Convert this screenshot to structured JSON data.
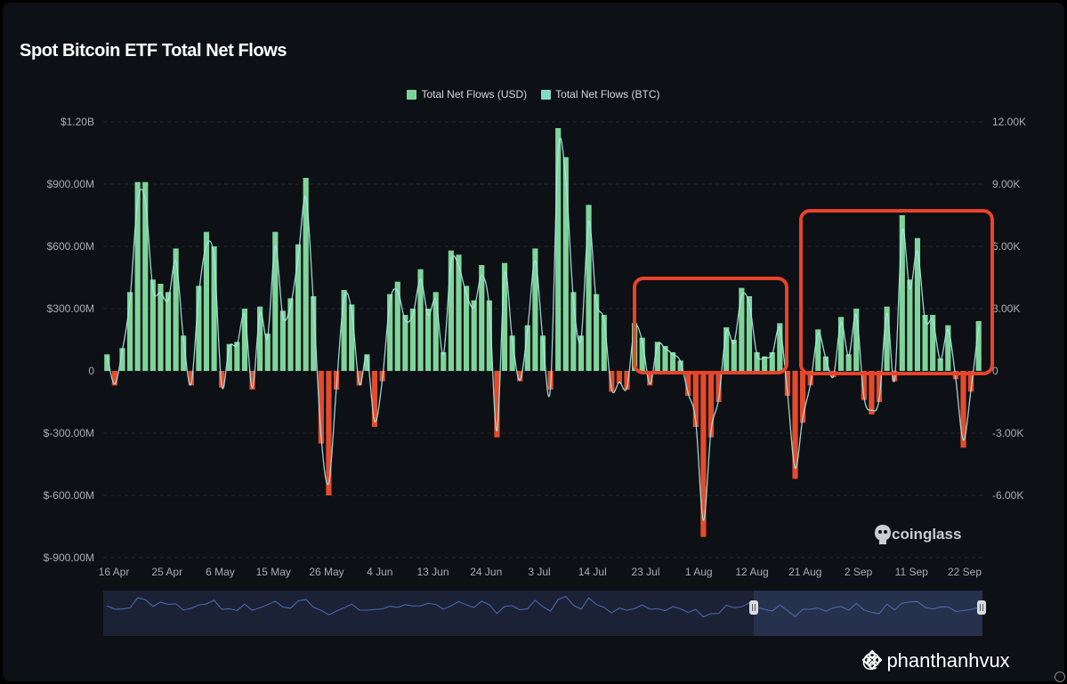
{
  "title": "Spot Bitcoin ETF Total Net Flows",
  "legend": [
    {
      "label": "Total Net Flows (USD)",
      "color": "#7fd49a"
    },
    {
      "label": "Total Net Flows (BTC)",
      "color": "#82dcc8"
    }
  ],
  "watermark": "coinglass",
  "credit": "@ phanthanhvux",
  "colors": {
    "positive": "#7fd49a",
    "negative": "#e34b2c",
    "line": "#a8e8e4",
    "highlight_box": "#e8432b",
    "navigator_bg": "#1b2236",
    "navigator_selected": "#26314d"
  },
  "chart_data": {
    "type": "bar",
    "grid": true,
    "legend_position": "top-center",
    "x_tick_labels": [
      "16 Apr",
      "25 Apr",
      "6 May",
      "15 May",
      "26 May",
      "4 Jun",
      "13 Jun",
      "24 Jun",
      "3 Jul",
      "14 Jul",
      "23 Jul",
      "1 Aug",
      "12 Aug",
      "21 Aug",
      "2 Sep",
      "11 Sep",
      "22 Sep"
    ],
    "y_left": {
      "ticks": [
        "$1.20B",
        "$900.00M",
        "$600.00M",
        "$300.00M",
        "0",
        "$-300.00M",
        "$-600.00M",
        "$-900.00M"
      ],
      "range": [
        -900,
        1200
      ],
      "unit": "USD millions"
    },
    "y_right": {
      "ticks": [
        "12.00K",
        "9.00K",
        "6.00K",
        "3.00K",
        "0",
        "-3.00K",
        "-6.00K"
      ],
      "range": [
        -9000,
        12000
      ],
      "unit": "BTC"
    },
    "series": [
      {
        "name": "Total Net Flows (USD)",
        "values": [
          80,
          -70,
          110,
          380,
          910,
          910,
          440,
          420,
          380,
          590,
          170,
          -70,
          410,
          670,
          600,
          -80,
          130,
          140,
          300,
          -90,
          310,
          180,
          670,
          290,
          350,
          610,
          930,
          360,
          -350,
          -600,
          -90,
          390,
          320,
          -70,
          80,
          -270,
          -50,
          370,
          430,
          270,
          300,
          490,
          300,
          380,
          90,
          580,
          560,
          410,
          340,
          510,
          340,
          -320,
          520,
          170,
          -50,
          220,
          590,
          170,
          -90,
          1170,
          1030,
          380,
          170,
          800,
          370,
          270,
          -100,
          -60,
          -90,
          230,
          160,
          -70,
          140,
          120,
          90,
          50,
          -120,
          -270,
          -800,
          -320,
          -150,
          210,
          150,
          400,
          360,
          90,
          70,
          90,
          230,
          -120,
          -520,
          -250,
          -70,
          200,
          70,
          -30,
          260,
          80,
          300,
          -140,
          -210,
          -150,
          310,
          -50,
          750,
          440,
          640,
          270,
          270,
          60,
          220,
          -40,
          -370,
          -100,
          240
        ]
      }
    ],
    "highlights": [
      {
        "from": "23 Jul",
        "to": "21 Aug"
      },
      {
        "from": "21 Aug",
        "to": "22 Sep"
      }
    ]
  }
}
